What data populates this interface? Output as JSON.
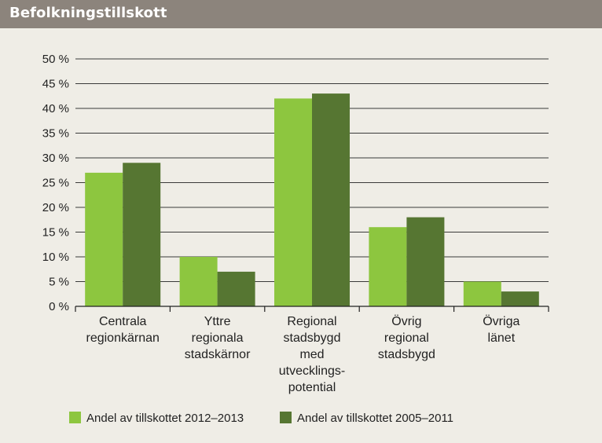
{
  "header": {
    "title": "Befolkningstillskott"
  },
  "chart_data": {
    "type": "bar",
    "title": "",
    "xlabel": "",
    "ylabel": "",
    "ylim": [
      0,
      50
    ],
    "yticks": [
      "0 %",
      "5 %",
      "10 %",
      "15 %",
      "20 %",
      "25 %",
      "30 %",
      "35 %",
      "40 %",
      "45 %",
      "50 %"
    ],
    "grid": "horizontal",
    "legend_position": "bottom",
    "categories": [
      [
        "Centrala",
        "regionkärnan"
      ],
      [
        "Yttre",
        "regionala",
        "stadskärnor"
      ],
      [
        "Regional",
        "stadsbygd",
        "med",
        "utvecklings-",
        "potential"
      ],
      [
        "Övrig",
        "regional",
        "stadsbygd"
      ],
      [
        "Övriga",
        "länet"
      ]
    ],
    "series": [
      {
        "name": "Andel av tillskottet 2012–2013",
        "color": "#8dc63f",
        "values": [
          27,
          10,
          42,
          16,
          5
        ]
      },
      {
        "name": "Andel av tillskottet 2005–2011",
        "color": "#567632",
        "values": [
          29,
          7,
          43,
          18,
          3
        ]
      }
    ]
  }
}
